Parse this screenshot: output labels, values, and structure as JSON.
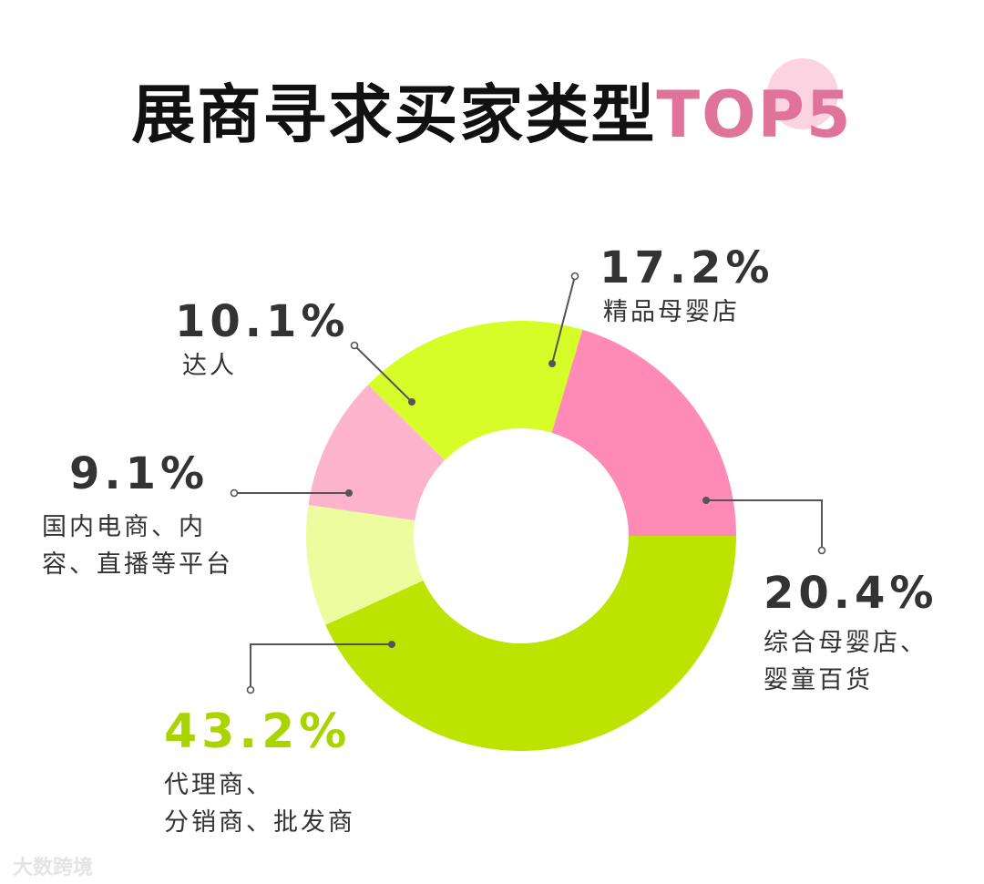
{
  "title": {
    "main": "展商寻求买家类型",
    "accent": "TOP5"
  },
  "chart_data": {
    "type": "donut",
    "slices": [
      {
        "label": "代理商、\n分销商、批发商",
        "value": 43.2,
        "pct_text": "43.2%",
        "color": "#bde400"
      },
      {
        "label": "国内电商、内\n容、直播等平台",
        "value": 9.1,
        "pct_text": "9.1%",
        "color": "#ecfc9e"
      },
      {
        "label": "达人",
        "value": 10.1,
        "pct_text": "10.1%",
        "color": "#feb3cd"
      },
      {
        "label": "精品母婴店",
        "value": 17.2,
        "pct_text": "17.2%",
        "color": "#d6fd28"
      },
      {
        "label": "综合母婴店、\n婴童百货",
        "value": 20.4,
        "pct_text": "20.4%",
        "color": "#fe8ab5"
      }
    ]
  },
  "watermark": "大数跨境"
}
